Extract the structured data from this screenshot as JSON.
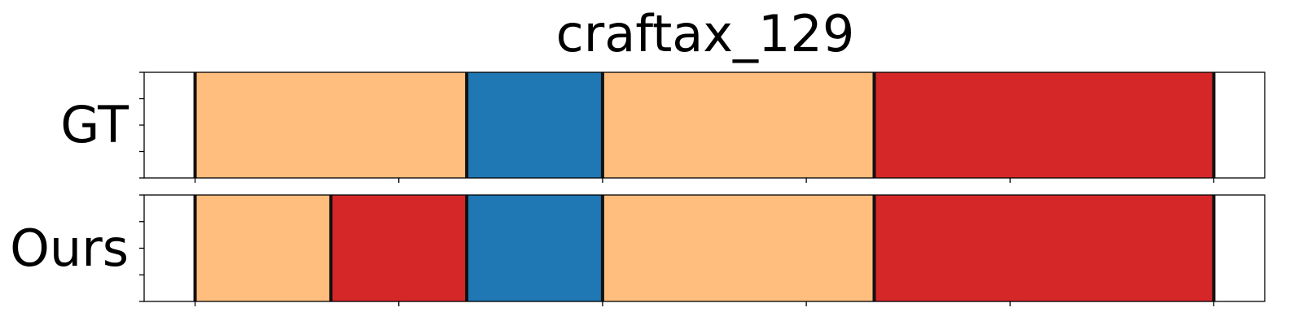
{
  "chart_data": {
    "type": "segmentation-timeline",
    "title": "craftax_129",
    "x_range": [
      0,
      330
    ],
    "x_ticks": [
      15,
      75,
      135,
      195,
      255,
      315
    ],
    "show_x_tick_labels": false,
    "y_ticks_per_row": 5,
    "colors": {
      "orange": "#ffbe7d",
      "blue": "#1f77b4",
      "red": "#d62728"
    },
    "boundary_color": "#111111",
    "rows": [
      {
        "label": "GT",
        "segments": [
          {
            "start": 15,
            "end": 95,
            "color": "orange"
          },
          {
            "start": 95,
            "end": 135,
            "color": "blue"
          },
          {
            "start": 135,
            "end": 215,
            "color": "orange"
          },
          {
            "start": 215,
            "end": 315,
            "color": "red"
          }
        ]
      },
      {
        "label": "Ours",
        "segments": [
          {
            "start": 15,
            "end": 55,
            "color": "orange"
          },
          {
            "start": 55,
            "end": 95,
            "color": "red"
          },
          {
            "start": 95,
            "end": 135,
            "color": "blue"
          },
          {
            "start": 135,
            "end": 215,
            "color": "orange"
          },
          {
            "start": 215,
            "end": 315,
            "color": "red"
          }
        ]
      }
    ]
  }
}
